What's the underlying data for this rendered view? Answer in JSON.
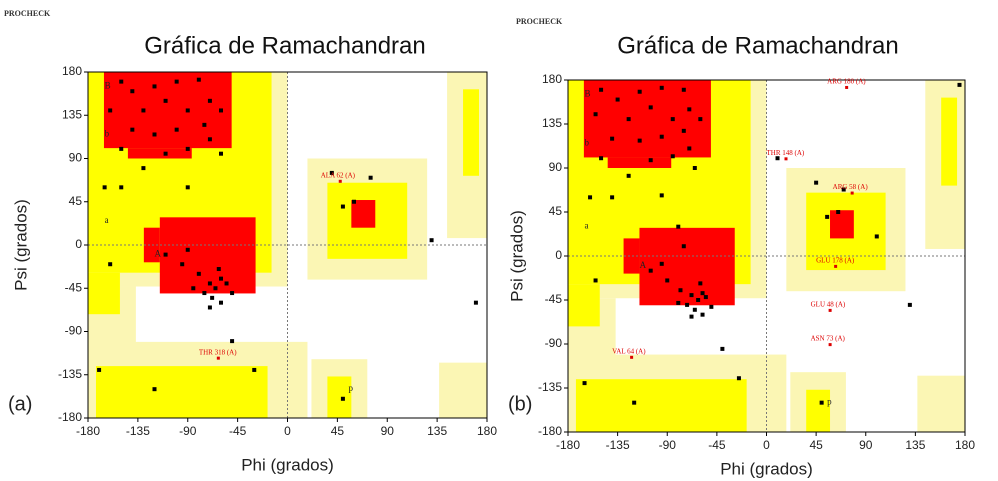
{
  "chart_data": [
    {
      "type": "scatter",
      "source": "PROCHECK",
      "title": "Gráfica de Ramachandran",
      "panel_label": "(a)",
      "xlabel": "Phi (grados)",
      "ylabel": "Psi (grados)",
      "xlim": [
        -180,
        180
      ],
      "ylim": [
        -180,
        180
      ],
      "xticks": [
        -180,
        -135,
        -90,
        -45,
        0,
        45,
        90,
        135,
        180
      ],
      "yticks": [
        -180,
        -135,
        -90,
        -45,
        0,
        45,
        90,
        135,
        180
      ],
      "color": "#000000",
      "x": [
        -150,
        -140,
        -120,
        -100,
        -80,
        -160,
        -130,
        -110,
        -90,
        -70,
        -140,
        -120,
        -100,
        -75,
        -60,
        -150,
        -110,
        -90,
        -130,
        -70,
        -60,
        -150,
        -90,
        -110,
        -95,
        -80,
        -70,
        -65,
        -60,
        -75,
        -68,
        -55,
        -62,
        -85,
        -70,
        -60,
        -50,
        -90,
        50,
        60,
        40,
        75,
        130,
        170,
        -50,
        -120,
        -170,
        50,
        -30,
        -165,
        -160
      ],
      "values": [
        170,
        160,
        165,
        170,
        172,
        140,
        140,
        150,
        140,
        150,
        120,
        115,
        120,
        125,
        140,
        100,
        95,
        100,
        80,
        110,
        95,
        60,
        60,
        -10,
        -20,
        -30,
        -40,
        -45,
        -35,
        -50,
        -55,
        -40,
        -25,
        -45,
        -65,
        -60,
        -50,
        -5,
        40,
        45,
        75,
        70,
        5,
        -60,
        -100,
        -150,
        -130,
        -160,
        -130,
        60,
        -20
      ],
      "annotations": [
        {
          "text": "ALA 62 (A)",
          "x": 30,
          "y": 72
        },
        {
          "text": "THR 318 (A)",
          "x": -80,
          "y": -112
        }
      ],
      "region_labels": [
        {
          "text": "B",
          "x": -165,
          "y": 165
        },
        {
          "text": "b",
          "x": -165,
          "y": 115
        },
        {
          "text": "A",
          "x": -120,
          "y": -10
        },
        {
          "text": "a",
          "x": -165,
          "y": 25
        },
        {
          "text": "p",
          "x": 55,
          "y": -150
        }
      ]
    },
    {
      "type": "scatter",
      "source": "PROCHECK",
      "title": "Gráfica de Ramachandran",
      "panel_label": "(b)",
      "xlabel": "Phi (grados)",
      "ylabel": "Psi (grados)",
      "xlim": [
        -180,
        180
      ],
      "ylim": [
        -180,
        180
      ],
      "xticks": [
        -180,
        -135,
        -90,
        -45,
        0,
        45,
        90,
        135,
        180
      ],
      "yticks": [
        -180,
        -135,
        -90,
        -45,
        0,
        45,
        90,
        135,
        180
      ],
      "color": "#000000",
      "x": [
        -150,
        -135,
        -115,
        -95,
        -75,
        -155,
        -125,
        -105,
        -85,
        -70,
        -140,
        -115,
        -95,
        -75,
        -60,
        -150,
        -105,
        -85,
        -125,
        -70,
        -65,
        -140,
        -95,
        -80,
        -75,
        -105,
        -90,
        -78,
        -68,
        -62,
        -58,
        -72,
        -65,
        -55,
        -60,
        -80,
        -68,
        -58,
        -50,
        -95,
        55,
        65,
        45,
        70,
        100,
        175,
        130,
        -40,
        -120,
        -165,
        50,
        -25,
        -160,
        -155,
        10
      ],
      "values": [
        170,
        160,
        168,
        172,
        170,
        145,
        140,
        152,
        140,
        150,
        120,
        118,
        122,
        128,
        140,
        100,
        98,
        102,
        82,
        110,
        90,
        60,
        62,
        30,
        10,
        -15,
        -25,
        -35,
        -40,
        -45,
        -38,
        -50,
        -55,
        -42,
        -28,
        -48,
        -62,
        -60,
        -52,
        -8,
        40,
        45,
        75,
        68,
        20,
        175,
        -50,
        -95,
        -150,
        -130,
        -150,
        -125,
        60,
        -25,
        100
      ],
      "annotations": [
        {
          "text": "ARG 180 (A)",
          "x": 55,
          "y": 178
        },
        {
          "text": "THR 148 (A)",
          "x": 0,
          "y": 105
        },
        {
          "text": "ARG 58 (A)",
          "x": 60,
          "y": 70
        },
        {
          "text": "GLU 178 (A)",
          "x": 45,
          "y": -5
        },
        {
          "text": "GLU 48 (A)",
          "x": 40,
          "y": -50
        },
        {
          "text": "ASN 73 (A)",
          "x": 40,
          "y": -85
        },
        {
          "text": "VAL 64 (A)",
          "x": -140,
          "y": -98
        }
      ],
      "region_labels": [
        {
          "text": "B",
          "x": -165,
          "y": 165
        },
        {
          "text": "b",
          "x": -165,
          "y": 115
        },
        {
          "text": "A",
          "x": -115,
          "y": -10
        },
        {
          "text": "a",
          "x": -165,
          "y": 30
        },
        {
          "text": "p",
          "x": 55,
          "y": -150
        }
      ]
    }
  ]
}
